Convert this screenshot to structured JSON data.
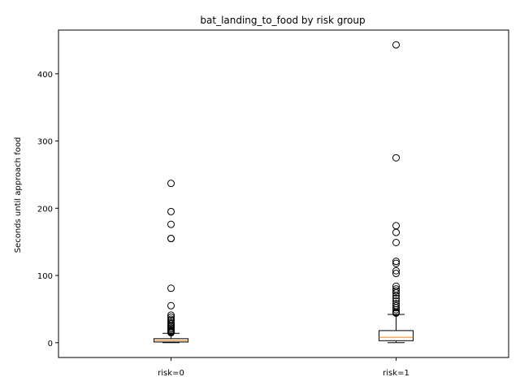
{
  "chart_data": {
    "type": "boxplot",
    "title": "bat_landing_to_food by risk group",
    "xlabel": "",
    "ylabel": "Seconds until approach food",
    "categories": [
      "risk=0",
      "risk=1"
    ],
    "ylim": [
      -22,
      465
    ],
    "yticks": [
      0,
      100,
      200,
      300,
      400
    ],
    "grid": false,
    "colors": {
      "box": "#000000",
      "median": "#ff7f0e",
      "outlier": "#000000"
    },
    "boxes": [
      {
        "name": "risk=0",
        "whisker_low": 0,
        "q1": 1,
        "median": 3,
        "q3": 6,
        "whisker_high": 14,
        "outliers": [
          237,
          195,
          176,
          155,
          155,
          81,
          55,
          41,
          38,
          35,
          33,
          30,
          28,
          26,
          24,
          22,
          20,
          18,
          17,
          16,
          15,
          15
        ]
      },
      {
        "name": "risk=1",
        "whisker_low": 0,
        "q1": 3,
        "median": 8,
        "q3": 18,
        "whisker_high": 42,
        "outliers": [
          443,
          275,
          174,
          164,
          149,
          121,
          118,
          107,
          103,
          84,
          80,
          77,
          74,
          70,
          66,
          62,
          58,
          55,
          52,
          49,
          46,
          45,
          44
        ]
      }
    ]
  }
}
